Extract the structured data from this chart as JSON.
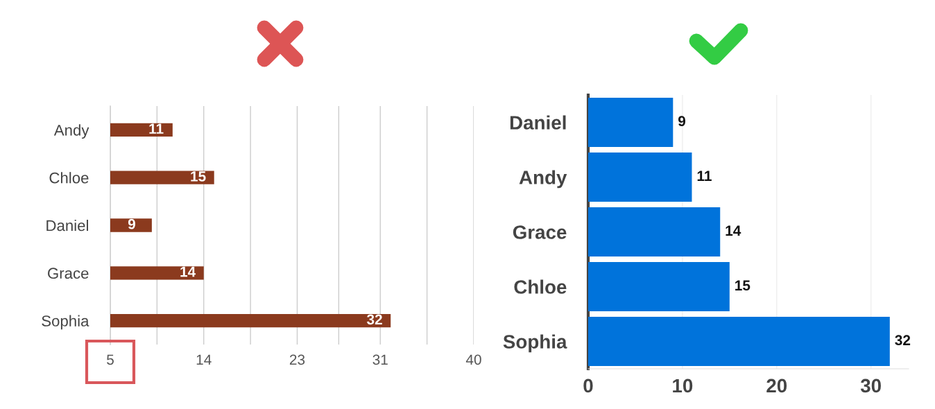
{
  "chart_data": [
    {
      "type": "bar",
      "orientation": "horizontal",
      "categories": [
        "Andy",
        "Chloe",
        "Daniel",
        "Grace",
        "Sophia"
      ],
      "values": [
        11,
        15,
        9,
        14,
        32
      ],
      "color": "#8b3a1e",
      "data_labels": true,
      "xlim": [
        5,
        40
      ],
      "xticks": [
        5,
        {
          "value": 9.5,
          "label": null
        },
        14,
        {
          "value": 18.5,
          "label": null
        },
        23,
        {
          "value": 27,
          "label": null
        },
        31,
        {
          "value": 35.5,
          "label": null
        },
        40
      ],
      "grid": "x"
    },
    {
      "type": "bar",
      "orientation": "horizontal",
      "categories": [
        "Daniel",
        "Andy",
        "Grace",
        "Chloe",
        "Sophia"
      ],
      "values": [
        9,
        11,
        14,
        15,
        32
      ],
      "color": "#0073db",
      "data_labels": true,
      "xlim": [
        0,
        34
      ],
      "xticks": [
        0,
        10,
        20,
        30
      ],
      "grid": "x"
    }
  ]
}
